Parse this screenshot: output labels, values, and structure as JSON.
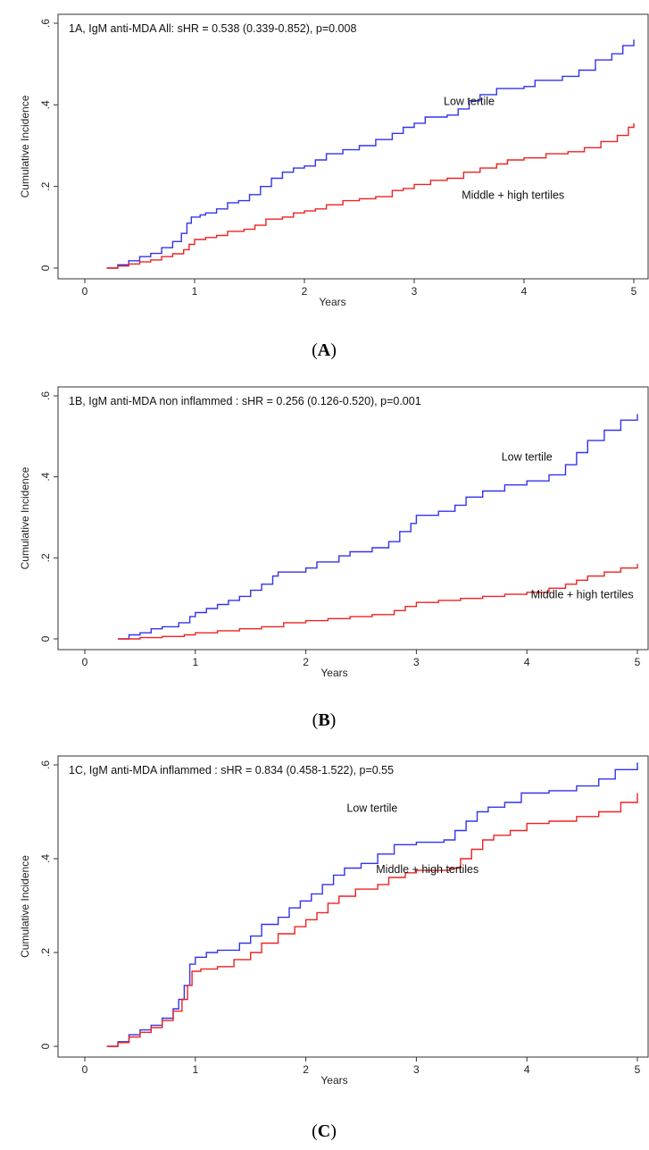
{
  "chart_data": [
    {
      "type": "line",
      "title": "1A, IgM anti-MDA All: sHR = 0.538 (0.339-0.852), p=0.008",
      "xlabel": "Years",
      "ylabel": "Cumulative Incidence",
      "xlim": [
        0,
        5
      ],
      "ylim": [
        0,
        0.6
      ],
      "xticks": [
        "0",
        "1",
        "2",
        "3",
        "4",
        "5"
      ],
      "yticks": [
        ".6",
        ".4",
        ".2",
        "0"
      ],
      "caption": "A",
      "series": [
        {
          "name": "Low tertile",
          "color": "#3333ee",
          "label_pos": [
            3.5,
            0.4
          ],
          "points": [
            [
              0.2,
              0
            ],
            [
              0.3,
              0.008
            ],
            [
              0.4,
              0.018
            ],
            [
              0.5,
              0.028
            ],
            [
              0.6,
              0.036
            ],
            [
              0.7,
              0.05
            ],
            [
              0.8,
              0.065
            ],
            [
              0.88,
              0.085
            ],
            [
              0.93,
              0.11
            ],
            [
              0.97,
              0.125
            ],
            [
              1.05,
              0.13
            ],
            [
              1.1,
              0.135
            ],
            [
              1.2,
              0.145
            ],
            [
              1.3,
              0.16
            ],
            [
              1.4,
              0.165
            ],
            [
              1.5,
              0.18
            ],
            [
              1.6,
              0.2
            ],
            [
              1.7,
              0.22
            ],
            [
              1.8,
              0.235
            ],
            [
              1.9,
              0.245
            ],
            [
              2.0,
              0.25
            ],
            [
              2.1,
              0.265
            ],
            [
              2.2,
              0.28
            ],
            [
              2.35,
              0.29
            ],
            [
              2.5,
              0.3
            ],
            [
              2.65,
              0.315
            ],
            [
              2.8,
              0.33
            ],
            [
              2.9,
              0.345
            ],
            [
              3.0,
              0.355
            ],
            [
              3.1,
              0.37
            ],
            [
              3.3,
              0.375
            ],
            [
              3.4,
              0.39
            ],
            [
              3.5,
              0.41
            ],
            [
              3.6,
              0.425
            ],
            [
              3.75,
              0.44
            ],
            [
              4.0,
              0.445
            ],
            [
              4.1,
              0.46
            ],
            [
              4.35,
              0.47
            ],
            [
              4.5,
              0.485
            ],
            [
              4.65,
              0.51
            ],
            [
              4.8,
              0.525
            ],
            [
              4.9,
              0.545
            ],
            [
              5.0,
              0.56
            ]
          ]
        },
        {
          "name": "Middle + high tertiles",
          "color": "#ee2222",
          "label_pos": [
            3.9,
            0.17
          ],
          "points": [
            [
              0.2,
              0
            ],
            [
              0.3,
              0.005
            ],
            [
              0.4,
              0.01
            ],
            [
              0.5,
              0.015
            ],
            [
              0.6,
              0.02
            ],
            [
              0.7,
              0.028
            ],
            [
              0.8,
              0.035
            ],
            [
              0.9,
              0.045
            ],
            [
              0.95,
              0.058
            ],
            [
              1.0,
              0.07
            ],
            [
              1.1,
              0.075
            ],
            [
              1.2,
              0.08
            ],
            [
              1.3,
              0.09
            ],
            [
              1.45,
              0.095
            ],
            [
              1.55,
              0.105
            ],
            [
              1.65,
              0.12
            ],
            [
              1.8,
              0.125
            ],
            [
              1.9,
              0.135
            ],
            [
              2.0,
              0.14
            ],
            [
              2.1,
              0.145
            ],
            [
              2.2,
              0.155
            ],
            [
              2.35,
              0.165
            ],
            [
              2.5,
              0.17
            ],
            [
              2.65,
              0.175
            ],
            [
              2.8,
              0.19
            ],
            [
              2.9,
              0.195
            ],
            [
              3.0,
              0.205
            ],
            [
              3.15,
              0.215
            ],
            [
              3.3,
              0.22
            ],
            [
              3.45,
              0.235
            ],
            [
              3.6,
              0.245
            ],
            [
              3.75,
              0.255
            ],
            [
              3.85,
              0.265
            ],
            [
              4.0,
              0.27
            ],
            [
              4.2,
              0.28
            ],
            [
              4.4,
              0.285
            ],
            [
              4.55,
              0.295
            ],
            [
              4.7,
              0.31
            ],
            [
              4.85,
              0.325
            ],
            [
              4.95,
              0.345
            ],
            [
              5.0,
              0.355
            ]
          ]
        }
      ]
    },
    {
      "type": "line",
      "title": "1B, IgM anti-MDA non inflammed : sHR = 0.256 (0.126-0.520), p=0.001",
      "xlabel": "Years",
      "ylabel": "Cumulative Incidence",
      "xlim": [
        0,
        5
      ],
      "ylim": [
        0,
        0.6
      ],
      "xticks": [
        "0",
        "1",
        "2",
        "3",
        "4",
        "5"
      ],
      "yticks": [
        ".6",
        ".4",
        ".2",
        "0"
      ],
      "caption": "B",
      "series": [
        {
          "name": "Low tertile",
          "color": "#3333ee",
          "label_pos": [
            4.0,
            0.44
          ],
          "points": [
            [
              0.3,
              0
            ],
            [
              0.4,
              0.01
            ],
            [
              0.5,
              0.015
            ],
            [
              0.6,
              0.025
            ],
            [
              0.7,
              0.03
            ],
            [
              0.85,
              0.04
            ],
            [
              0.95,
              0.055
            ],
            [
              1.0,
              0.065
            ],
            [
              1.1,
              0.075
            ],
            [
              1.2,
              0.085
            ],
            [
              1.3,
              0.095
            ],
            [
              1.4,
              0.105
            ],
            [
              1.5,
              0.12
            ],
            [
              1.6,
              0.135
            ],
            [
              1.7,
              0.155
            ],
            [
              1.75,
              0.165
            ],
            [
              2.0,
              0.175
            ],
            [
              2.1,
              0.19
            ],
            [
              2.3,
              0.205
            ],
            [
              2.4,
              0.215
            ],
            [
              2.6,
              0.225
            ],
            [
              2.75,
              0.24
            ],
            [
              2.85,
              0.265
            ],
            [
              2.95,
              0.285
            ],
            [
              3.0,
              0.305
            ],
            [
              3.2,
              0.315
            ],
            [
              3.35,
              0.33
            ],
            [
              3.45,
              0.35
            ],
            [
              3.6,
              0.365
            ],
            [
              3.8,
              0.38
            ],
            [
              4.0,
              0.39
            ],
            [
              4.2,
              0.405
            ],
            [
              4.35,
              0.43
            ],
            [
              4.45,
              0.46
            ],
            [
              4.55,
              0.49
            ],
            [
              4.7,
              0.515
            ],
            [
              4.85,
              0.54
            ],
            [
              5.0,
              0.555
            ]
          ]
        },
        {
          "name": "Middle + high tertiles",
          "color": "#ee2222",
          "label_pos": [
            4.5,
            0.1
          ],
          "points": [
            [
              0.3,
              0
            ],
            [
              0.5,
              0.003
            ],
            [
              0.7,
              0.006
            ],
            [
              0.9,
              0.01
            ],
            [
              1.0,
              0.015
            ],
            [
              1.2,
              0.02
            ],
            [
              1.4,
              0.025
            ],
            [
              1.6,
              0.03
            ],
            [
              1.8,
              0.04
            ],
            [
              2.0,
              0.045
            ],
            [
              2.2,
              0.05
            ],
            [
              2.4,
              0.055
            ],
            [
              2.6,
              0.06
            ],
            [
              2.8,
              0.07
            ],
            [
              2.9,
              0.08
            ],
            [
              3.0,
              0.09
            ],
            [
              3.2,
              0.095
            ],
            [
              3.4,
              0.1
            ],
            [
              3.6,
              0.105
            ],
            [
              3.8,
              0.11
            ],
            [
              4.0,
              0.115
            ],
            [
              4.2,
              0.125
            ],
            [
              4.35,
              0.135
            ],
            [
              4.45,
              0.145
            ],
            [
              4.55,
              0.155
            ],
            [
              4.7,
              0.165
            ],
            [
              4.85,
              0.175
            ],
            [
              5.0,
              0.185
            ]
          ]
        }
      ]
    },
    {
      "type": "line",
      "title": "1C, IgM anti-MDA inflammed : sHR = 0.834 (0.458-1.522), p=0.55",
      "xlabel": "Years",
      "ylabel": "Cumulative Incidence",
      "xlim": [
        0,
        5
      ],
      "ylim": [
        0,
        0.6
      ],
      "xticks": [
        "0",
        "1",
        "2",
        "3",
        "4",
        "5"
      ],
      "yticks": [
        ".6",
        ".4",
        ".2",
        "0"
      ],
      "caption": "C",
      "series": [
        {
          "name": "Low tertile",
          "color": "#3333ee",
          "label_pos": [
            2.6,
            0.5
          ],
          "points": [
            [
              0.2,
              0
            ],
            [
              0.3,
              0.01
            ],
            [
              0.4,
              0.025
            ],
            [
              0.5,
              0.035
            ],
            [
              0.6,
              0.045
            ],
            [
              0.7,
              0.06
            ],
            [
              0.8,
              0.08
            ],
            [
              0.85,
              0.1
            ],
            [
              0.9,
              0.13
            ],
            [
              0.95,
              0.175
            ],
            [
              1.0,
              0.19
            ],
            [
              1.1,
              0.2
            ],
            [
              1.2,
              0.205
            ],
            [
              1.4,
              0.22
            ],
            [
              1.5,
              0.235
            ],
            [
              1.6,
              0.26
            ],
            [
              1.75,
              0.275
            ],
            [
              1.85,
              0.295
            ],
            [
              1.95,
              0.31
            ],
            [
              2.05,
              0.325
            ],
            [
              2.15,
              0.345
            ],
            [
              2.25,
              0.365
            ],
            [
              2.35,
              0.38
            ],
            [
              2.5,
              0.39
            ],
            [
              2.65,
              0.41
            ],
            [
              2.8,
              0.43
            ],
            [
              3.0,
              0.435
            ],
            [
              3.25,
              0.44
            ],
            [
              3.35,
              0.46
            ],
            [
              3.45,
              0.48
            ],
            [
              3.55,
              0.5
            ],
            [
              3.65,
              0.51
            ],
            [
              3.8,
              0.52
            ],
            [
              3.95,
              0.54
            ],
            [
              4.2,
              0.545
            ],
            [
              4.45,
              0.555
            ],
            [
              4.65,
              0.57
            ],
            [
              4.8,
              0.59
            ],
            [
              5.0,
              0.605
            ]
          ]
        },
        {
          "name": "Middle + high tertiles",
          "color": "#ee2222",
          "label_pos": [
            3.1,
            0.37
          ],
          "points": [
            [
              0.2,
              0
            ],
            [
              0.3,
              0.008
            ],
            [
              0.4,
              0.02
            ],
            [
              0.5,
              0.03
            ],
            [
              0.6,
              0.04
            ],
            [
              0.7,
              0.055
            ],
            [
              0.8,
              0.075
            ],
            [
              0.88,
              0.1
            ],
            [
              0.93,
              0.13
            ],
            [
              0.97,
              0.16
            ],
            [
              1.05,
              0.165
            ],
            [
              1.2,
              0.17
            ],
            [
              1.35,
              0.185
            ],
            [
              1.5,
              0.2
            ],
            [
              1.6,
              0.22
            ],
            [
              1.75,
              0.24
            ],
            [
              1.9,
              0.255
            ],
            [
              2.0,
              0.27
            ],
            [
              2.1,
              0.285
            ],
            [
              2.2,
              0.305
            ],
            [
              2.3,
              0.32
            ],
            [
              2.45,
              0.335
            ],
            [
              2.65,
              0.345
            ],
            [
              2.75,
              0.36
            ],
            [
              2.9,
              0.37
            ],
            [
              3.0,
              0.375
            ],
            [
              3.3,
              0.38
            ],
            [
              3.4,
              0.4
            ],
            [
              3.5,
              0.42
            ],
            [
              3.6,
              0.44
            ],
            [
              3.7,
              0.45
            ],
            [
              3.85,
              0.46
            ],
            [
              4.0,
              0.475
            ],
            [
              4.2,
              0.48
            ],
            [
              4.45,
              0.49
            ],
            [
              4.65,
              0.5
            ],
            [
              4.85,
              0.52
            ],
            [
              5.0,
              0.54
            ]
          ]
        }
      ]
    }
  ]
}
